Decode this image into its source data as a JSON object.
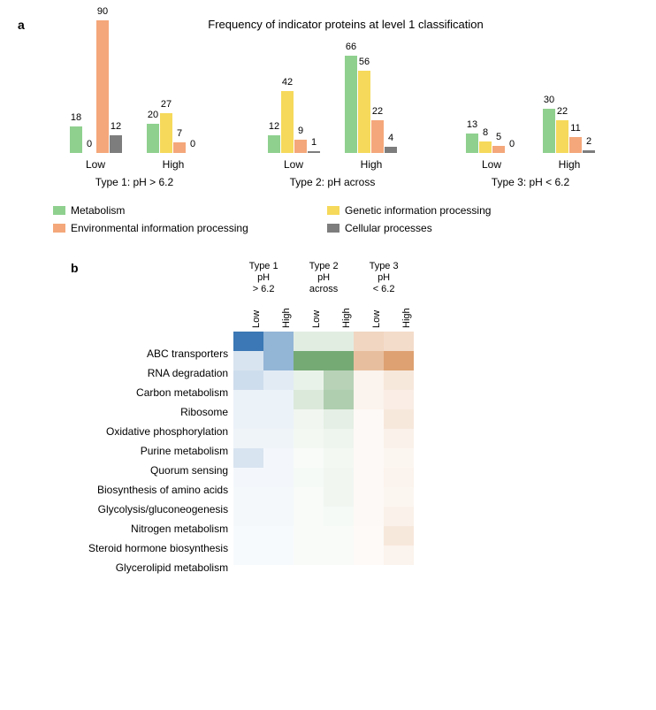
{
  "panelA": {
    "label": "a",
    "title": "Frequency of indicator proteins at level 1 classification",
    "ymax": 90,
    "categories": [
      {
        "name": "Metabolism",
        "color": "#8fd08f"
      },
      {
        "name": "Genetic information processing",
        "color": "#f6d95b"
      },
      {
        "name": "Environmental information processing",
        "color": "#f4a77a"
      },
      {
        "name": "Cellular processes",
        "color": "#7d7d7d"
      }
    ],
    "types": [
      {
        "label": "Type 1: pH > 6.2",
        "sub": [
          {
            "label": "Low",
            "values": [
              18,
              0,
              90,
              12
            ]
          },
          {
            "label": "High",
            "values": [
              20,
              27,
              7,
              0
            ]
          }
        ]
      },
      {
        "label": "Type 2: pH across",
        "sub": [
          {
            "label": "Low",
            "values": [
              12,
              42,
              9,
              1
            ]
          },
          {
            "label": "High",
            "values": [
              66,
              56,
              22,
              4
            ]
          }
        ]
      },
      {
        "label": "Type 3: pH < 6.2",
        "sub": [
          {
            "label": "Low",
            "values": [
              13,
              8,
              5,
              0
            ]
          },
          {
            "label": "High",
            "values": [
              30,
              22,
              11,
              2
            ]
          }
        ]
      }
    ]
  },
  "panelB": {
    "label": "b",
    "col_groups": [
      {
        "line1": "Type 1",
        "line2": "pH",
        "line3": "> 6.2",
        "base": "#3b78b5"
      },
      {
        "line1": "Type 2",
        "line2": "pH",
        "line3": "across",
        "base": "#6ea56e"
      },
      {
        "line1": "Type 3",
        "line2": "pH",
        "line3": "< 6.2",
        "base": "#d68a4f"
      }
    ],
    "sub_labels": [
      "Low",
      "High"
    ],
    "rows": [
      {
        "label": "ABC transporters",
        "v": [
          1.0,
          0.55,
          0.2,
          0.2,
          0.35,
          0.3
        ]
      },
      {
        "label": "RNA degradation",
        "v": [
          0.2,
          0.55,
          0.95,
          0.95,
          0.55,
          0.8
        ]
      },
      {
        "label": "Carbon metabolism",
        "v": [
          0.25,
          0.15,
          0.15,
          0.5,
          0.1,
          0.2
        ]
      },
      {
        "label": "Ribosome",
        "v": [
          0.1,
          0.1,
          0.25,
          0.55,
          0.1,
          0.15
        ]
      },
      {
        "label": "Oxidative phosphorylation",
        "v": [
          0.1,
          0.1,
          0.1,
          0.18,
          0.05,
          0.2
        ]
      },
      {
        "label": "Purine metabolism",
        "v": [
          0.08,
          0.08,
          0.08,
          0.12,
          0.05,
          0.12
        ]
      },
      {
        "label": "Quorum sensing",
        "v": [
          0.2,
          0.06,
          0.05,
          0.08,
          0.05,
          0.08
        ]
      },
      {
        "label": "Biosynthesis of amino acids",
        "v": [
          0.06,
          0.06,
          0.06,
          0.1,
          0.05,
          0.1
        ]
      },
      {
        "label": "Glycolysis/gluconeogenesis",
        "v": [
          0.05,
          0.05,
          0.05,
          0.1,
          0.05,
          0.08
        ]
      },
      {
        "label": "Nitrogen metabolism",
        "v": [
          0.05,
          0.05,
          0.05,
          0.06,
          0.05,
          0.12
        ]
      },
      {
        "label": "Steroid hormone biosynthesis",
        "v": [
          0.04,
          0.04,
          0.04,
          0.05,
          0.04,
          0.2
        ]
      },
      {
        "label": "Glycerolipid metabolism",
        "v": [
          0.04,
          0.04,
          0.04,
          0.05,
          0.04,
          0.1
        ]
      }
    ]
  }
}
